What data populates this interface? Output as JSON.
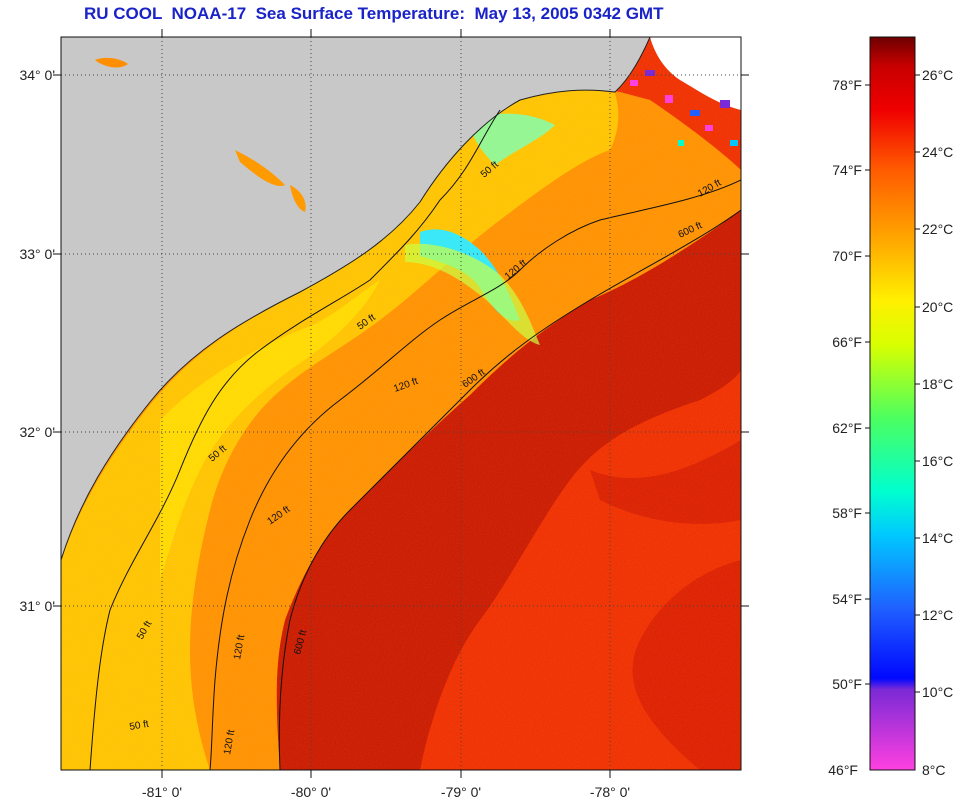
{
  "title": "RU COOL  NOAA-17  Sea Surface Temperature:  May 13, 2005 0342 GMT",
  "axes": {
    "lat_labels": [
      "34° 0'",
      "33° 0'",
      "32° 0'",
      "31° 0'"
    ],
    "lon_labels": [
      "-81° 0'",
      "-80° 0'",
      "-79° 0'",
      "-78° 0'"
    ]
  },
  "contour_labels": [
    "50 ft",
    "120 ft",
    "600 ft"
  ],
  "colorbar": {
    "fahrenheit": [
      "78°F",
      "74°F",
      "70°F",
      "66°F",
      "62°F",
      "58°F",
      "54°F",
      "50°F",
      "46°F"
    ],
    "celsius": [
      "26°C",
      "24°C",
      "22°C",
      "20°C",
      "18°C",
      "16°C",
      "14°C",
      "12°C",
      "10°C",
      "8°C"
    ],
    "colors": [
      "#ff40e0",
      "#7a2ad6",
      "#0008ff",
      "#2060ff",
      "#00c8ff",
      "#00ffcf",
      "#4cff60",
      "#d8ff00",
      "#fff000",
      "#ffaa00",
      "#ff5a00",
      "#f00000",
      "#c80000",
      "#6e0000"
    ]
  },
  "colors": {
    "land": "#c8c8c8",
    "title": "#1a23c8",
    "warm": "#f01a00",
    "gulfstream": "#c81400",
    "shelf": "#ffa800",
    "coastal": "#ffcf00",
    "cool": "#2ee8ff",
    "no_data": "#ffffff"
  }
}
